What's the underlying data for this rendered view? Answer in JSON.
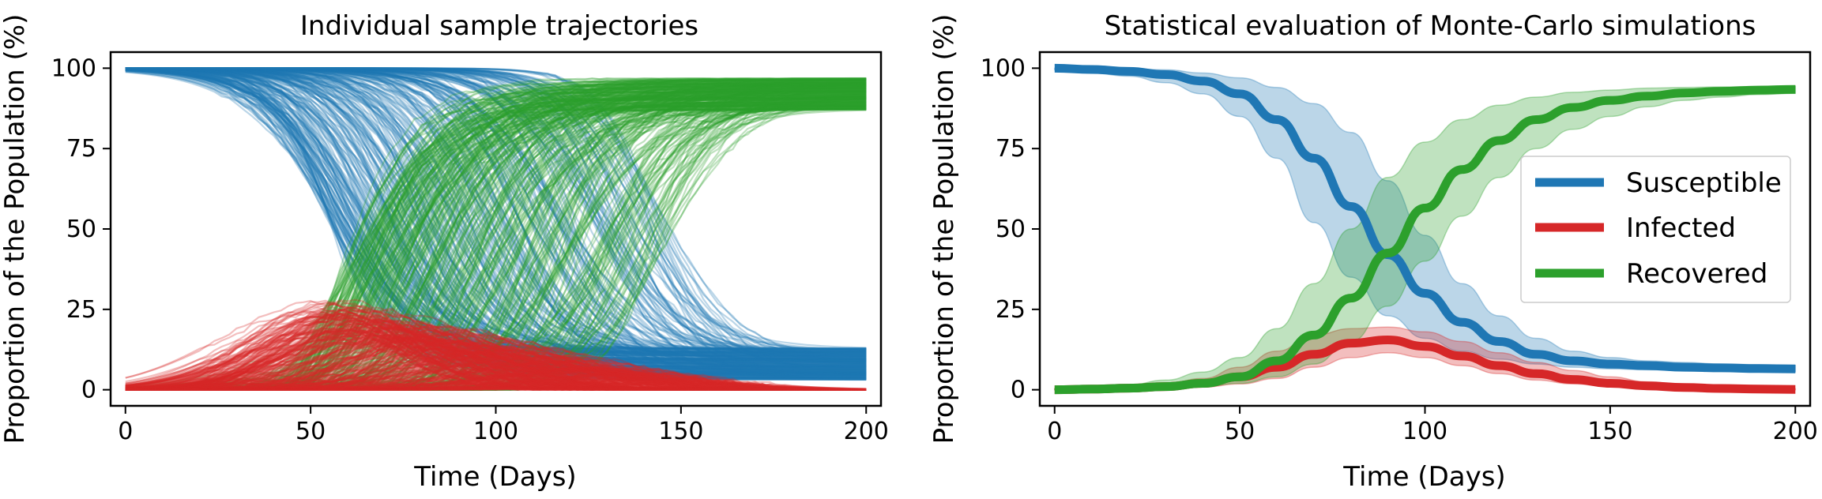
{
  "chart_data": [
    {
      "type": "line",
      "title": "Individual sample trajectories",
      "xlabel": "Time (Days)",
      "ylabel": "Proportion of the Population (%)",
      "xlim": [
        -4,
        204
      ],
      "ylim": [
        -5,
        105
      ],
      "xticks": [
        0,
        50,
        100,
        150,
        200
      ],
      "yticks": [
        0,
        25,
        50,
        75,
        100
      ],
      "x_tick_labels": [
        "0",
        "50",
        "100",
        "150",
        "200"
      ],
      "y_tick_labels": [
        "0",
        "25",
        "50",
        "75",
        "100"
      ],
      "grid": false,
      "legend": false,
      "series_colors": {
        "susceptible": "#1f77b4",
        "infected": "#d62728",
        "recovered": "#2ca02c"
      },
      "sample_count": 300,
      "sample_parameter_ranges": {
        "midpoint_day": [
          55,
          145
        ],
        "final_susceptible_percent": [
          3,
          13
        ],
        "infected_peak_percent": [
          2,
          29
        ]
      }
    },
    {
      "type": "line",
      "title": "Statistical evaluation of Monte-Carlo simulations",
      "xlabel": "Time (Days)",
      "ylabel": "Proportion of the Population (%)",
      "xlim": [
        -4,
        204
      ],
      "ylim": [
        -5,
        105
      ],
      "xticks": [
        0,
        50,
        100,
        150,
        200
      ],
      "yticks": [
        0,
        25,
        50,
        75,
        100
      ],
      "x_tick_labels": [
        "0",
        "50",
        "100",
        "150",
        "200"
      ],
      "y_tick_labels": [
        "0",
        "25",
        "50",
        "75",
        "100"
      ],
      "grid": false,
      "legend": "center-right",
      "x": [
        0,
        10,
        20,
        30,
        40,
        50,
        60,
        70,
        80,
        90,
        100,
        110,
        120,
        130,
        140,
        150,
        160,
        170,
        180,
        190,
        200
      ],
      "series": [
        {
          "name": "Susceptible",
          "color": "#1f77b4",
          "values": [
            100,
            99.6,
            99,
            98,
            96,
            92,
            84,
            72,
            57,
            42,
            30,
            21,
            15,
            11,
            9,
            8,
            7.5,
            7,
            6.8,
            6.6,
            6.5
          ],
          "lower": [
            99.5,
            98.5,
            97.5,
            95.5,
            92,
            85,
            72,
            52,
            35,
            23,
            16,
            12,
            9.5,
            8,
            7,
            6.5,
            6.2,
            6,
            5.8,
            5.7,
            5.6
          ],
          "upper": [
            100,
            100,
            99.8,
            99.5,
            98.5,
            97,
            94,
            89,
            80,
            65,
            48,
            33,
            23,
            16,
            12,
            10,
            9,
            8.5,
            8,
            7.8,
            7.6
          ]
        },
        {
          "name": "Infected",
          "color": "#d62728",
          "values": [
            0,
            0.2,
            0.5,
            1,
            2,
            4,
            7,
            11,
            14.5,
            15.5,
            13.5,
            10.5,
            7.5,
            5,
            3.2,
            2,
            1.2,
            0.7,
            0.4,
            0.2,
            0.1
          ],
          "lower": [
            0,
            0.1,
            0.2,
            0.4,
            0.8,
            1.8,
            3.5,
            7,
            10,
            11.5,
            10,
            7.5,
            5,
            3,
            1.8,
            1,
            0.5,
            0.3,
            0.1,
            0.05,
            0
          ],
          "upper": [
            0.3,
            0.5,
            1,
            1.8,
            3.5,
            7,
            12,
            17,
            19,
            19.5,
            18,
            15,
            11.5,
            8.5,
            6,
            4,
            2.5,
            1.5,
            0.9,
            0.5,
            0.3
          ]
        },
        {
          "name": "Recovered",
          "color": "#2ca02c",
          "values": [
            0,
            0.2,
            0.5,
            1,
            2,
            4,
            9,
            17,
            28.5,
            42.5,
            56.5,
            68.5,
            77.5,
            84,
            87.8,
            90,
            91.3,
            92.3,
            92.8,
            93.2,
            93.4
          ],
          "lower": [
            0,
            0.1,
            0.2,
            0.5,
            1,
            2,
            4,
            8,
            15,
            26,
            40,
            54,
            66,
            75,
            81,
            85,
            88,
            90,
            91,
            91.8,
            92.2
          ],
          "upper": [
            0.3,
            0.8,
            1.5,
            3,
            5.5,
            10,
            19,
            33,
            50,
            66,
            77,
            84,
            88.5,
            91,
            92.5,
            93.2,
            93.8,
            94,
            94.2,
            94.3,
            94.4
          ]
        }
      ]
    }
  ]
}
